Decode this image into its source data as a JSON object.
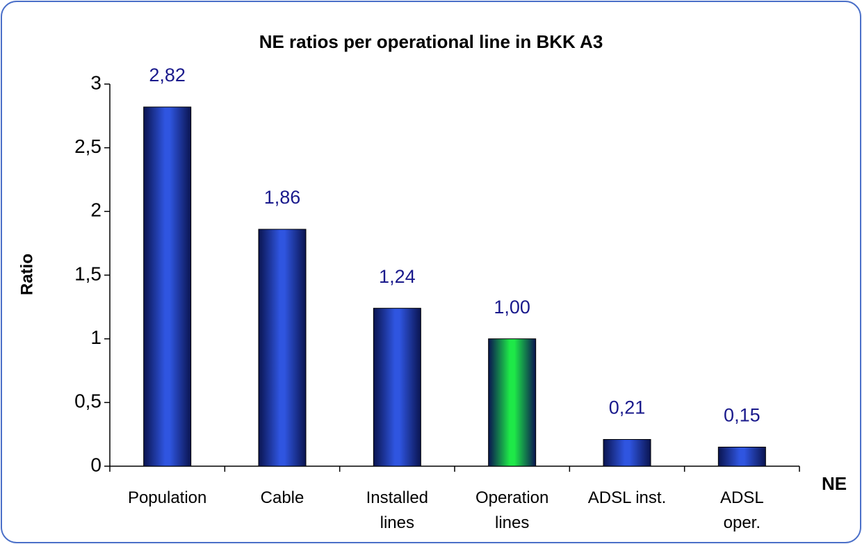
{
  "chart_data": {
    "type": "bar",
    "title": "NE ratios per operational line in  BKK A3",
    "y_label": "Ratio",
    "x_label": "NE",
    "categories": [
      "Population",
      "Cable",
      "Installed\nlines",
      "Operation\nlines",
      "ADSL inst.",
      "ADSL\noper."
    ],
    "values": [
      2.82,
      1.86,
      1.24,
      1.0,
      0.21,
      0.15
    ],
    "value_labels": [
      "2,82",
      "1,86",
      "1,24",
      "1,00",
      "0,21",
      "0,15"
    ],
    "colors": [
      "#2f55e0",
      "#2f55e0",
      "#2f55e0",
      "#1ee848",
      "#2f55e0",
      "#2f55e0"
    ],
    "ylim": [
      0,
      3
    ],
    "yticks": [
      0,
      {
        "value": 0.5,
        "label": "0,5"
      },
      1,
      {
        "value": 1.5,
        "label": "1,5"
      },
      2,
      {
        "value": 2.5,
        "label": "2,5"
      },
      3
    ],
    "grid": false
  }
}
